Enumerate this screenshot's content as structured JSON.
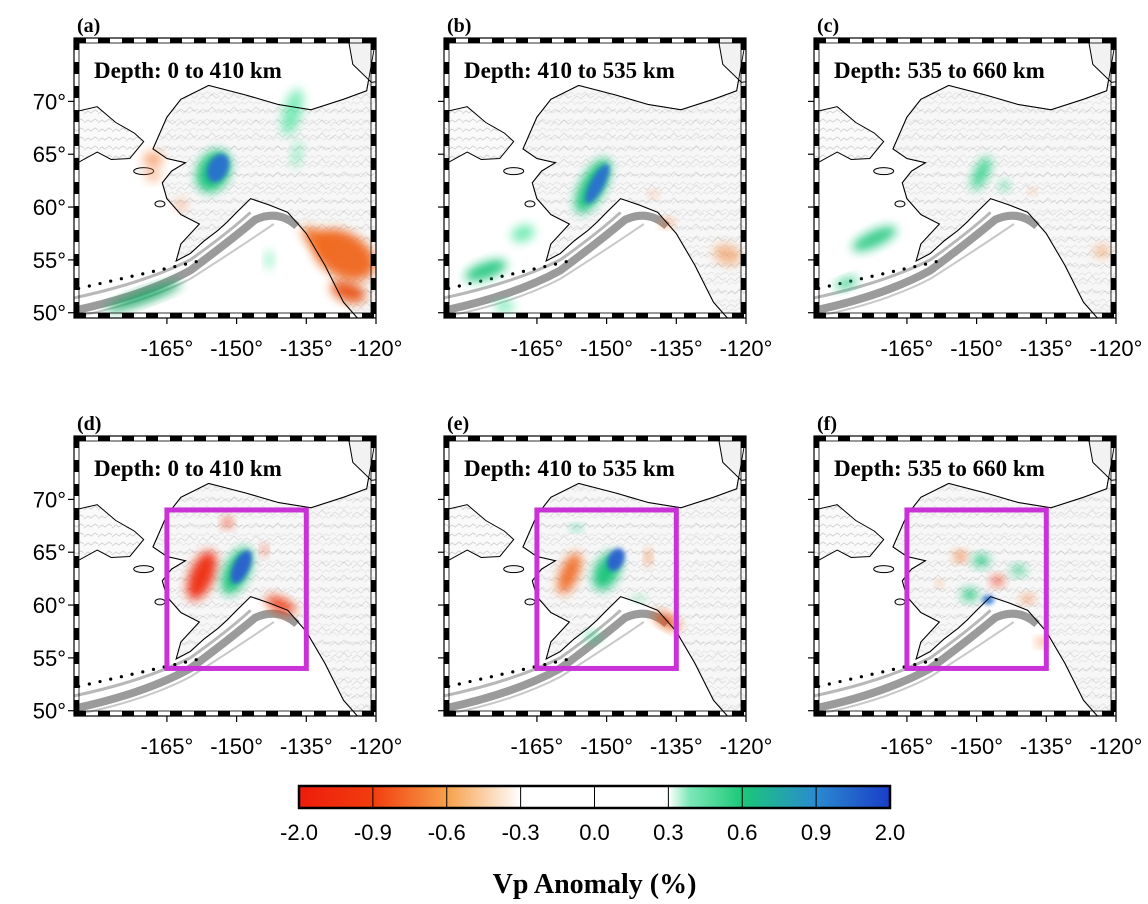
{
  "figure": {
    "panels": [
      {
        "letter": "(a)",
        "depth": "Depth: 0 to 410 km",
        "row": 0,
        "col": 0,
        "box": false
      },
      {
        "letter": "(b)",
        "depth": "Depth: 410 to 535 km",
        "row": 0,
        "col": 1,
        "box": false
      },
      {
        "letter": "(c)",
        "depth": "Depth: 535 to 660 km",
        "row": 0,
        "col": 2,
        "box": false
      },
      {
        "letter": "(d)",
        "depth": "Depth: 0 to 410 km",
        "row": 1,
        "col": 0,
        "box": true
      },
      {
        "letter": "(e)",
        "depth": "Depth: 410 to 535 km",
        "row": 1,
        "col": 1,
        "box": true
      },
      {
        "letter": "(f)",
        "depth": "Depth: 535 to 660 km",
        "row": 1,
        "col": 2,
        "box": true
      }
    ],
    "lat_ticks": [
      "70°",
      "65°",
      "60°",
      "55°",
      "50°"
    ],
    "lon_ticks": [
      "-165°",
      "-150°",
      "-135°",
      "-120°"
    ],
    "region_box": {
      "lon_min": -165,
      "lon_max": -135,
      "lat_min": 54,
      "lat_max": 69,
      "color": "#c832d6"
    },
    "colorbar": {
      "title": "Vp Anomaly (%)",
      "ticks": [
        "-2.0",
        "-0.9",
        "-0.6",
        "-0.3",
        "0.0",
        "0.3",
        "0.6",
        "0.9",
        "2.0"
      ],
      "colors": [
        "#ee1c0c",
        "#f4680c",
        "#f6a04a",
        "#ffffff",
        "#ffffff",
        "#2fd08a",
        "#1aa868",
        "#2a7ad8",
        "#1a46c8"
      ]
    }
  }
}
